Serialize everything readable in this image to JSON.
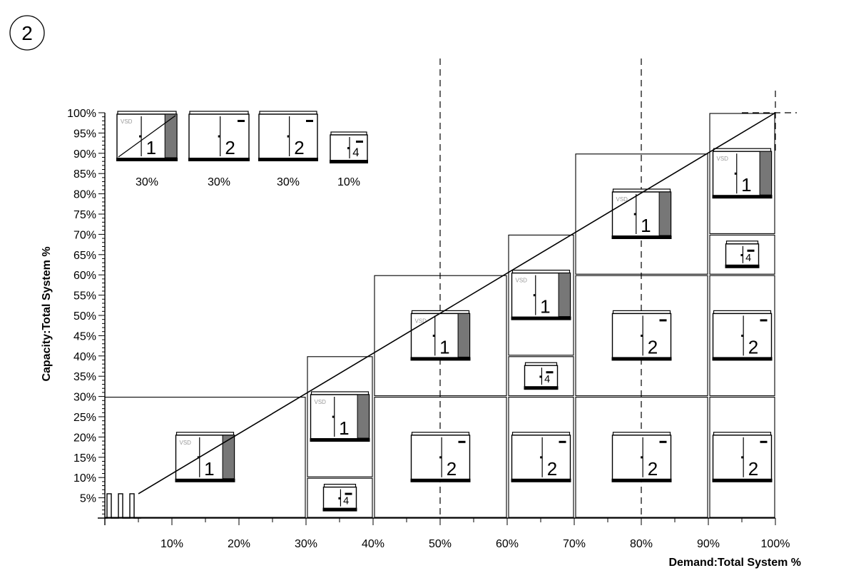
{
  "badge": "2",
  "axes": {
    "xlabel": "Demand:Total System %",
    "ylabel": "Capacity:Total System %",
    "x_ticks": [
      "10%",
      "20%",
      "30%",
      "40%",
      "50%",
      "60%",
      "70%",
      "80%",
      "90%",
      "100%"
    ],
    "y_ticks": [
      "5%",
      "10%",
      "15%",
      "20%",
      "25%",
      "30%",
      "35%",
      "40%",
      "45%",
      "50%",
      "55%",
      "60%",
      "65%",
      "70%",
      "75%",
      "80%",
      "85%",
      "90%",
      "95%",
      "100%"
    ]
  },
  "legend": [
    {
      "unit": "1",
      "vsd": true,
      "capacity": "30%"
    },
    {
      "unit": "2",
      "vsd": false,
      "capacity": "30%"
    },
    {
      "unit": "2",
      "vsd": false,
      "capacity": "30%"
    },
    {
      "unit": "4",
      "vsd": false,
      "capacity": "10%"
    }
  ],
  "vsd_label": "VSD",
  "chart_data": {
    "type": "diagram",
    "x_range": [
      0,
      100
    ],
    "y_range": [
      0,
      100
    ],
    "dashed_demand_lines": [
      50,
      80
    ],
    "capacity_line": [
      [
        5,
        6
      ],
      [
        100,
        100
      ]
    ],
    "stages": [
      {
        "demand": [
          0,
          30
        ],
        "units": [
          {
            "unit": "1",
            "vsd": true,
            "capacity": [
              0,
              30
            ]
          }
        ]
      },
      {
        "demand": [
          30,
          40
        ],
        "units": [
          {
            "unit": "4",
            "vsd": false,
            "capacity": [
              0,
              10
            ]
          },
          {
            "unit": "1",
            "vsd": true,
            "capacity": [
              10,
              40
            ]
          }
        ]
      },
      {
        "demand": [
          40,
          60
        ],
        "units": [
          {
            "unit": "2",
            "vsd": false,
            "capacity": [
              0,
              30
            ]
          },
          {
            "unit": "1",
            "vsd": true,
            "capacity": [
              30,
              60
            ]
          }
        ]
      },
      {
        "demand": [
          60,
          70
        ],
        "units": [
          {
            "unit": "2",
            "vsd": false,
            "capacity": [
              0,
              30
            ]
          },
          {
            "unit": "4",
            "vsd": false,
            "capacity": [
              30,
              40
            ]
          },
          {
            "unit": "1",
            "vsd": true,
            "capacity": [
              40,
              70
            ]
          }
        ]
      },
      {
        "demand": [
          70,
          90
        ],
        "units": [
          {
            "unit": "2",
            "vsd": false,
            "capacity": [
              0,
              30
            ]
          },
          {
            "unit": "2",
            "vsd": false,
            "capacity": [
              30,
              60
            ]
          },
          {
            "unit": "1",
            "vsd": true,
            "capacity": [
              60,
              90
            ]
          }
        ]
      },
      {
        "demand": [
          90,
          100
        ],
        "units": [
          {
            "unit": "2",
            "vsd": false,
            "capacity": [
              0,
              30
            ]
          },
          {
            "unit": "2",
            "vsd": false,
            "capacity": [
              30,
              60
            ]
          },
          {
            "unit": "4",
            "vsd": false,
            "capacity": [
              60,
              70
            ]
          },
          {
            "unit": "1",
            "vsd": true,
            "capacity": [
              70,
              100
            ]
          }
        ]
      }
    ]
  }
}
